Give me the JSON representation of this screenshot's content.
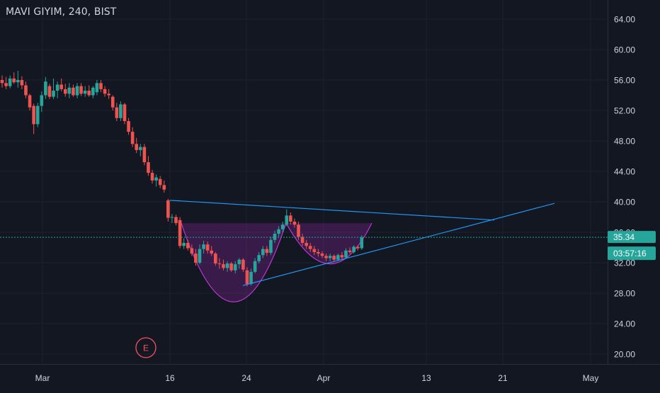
{
  "title": "MAVI GIYIM, 240, BIST",
  "colors": {
    "background": "#131722",
    "up": "#26a69a",
    "down": "#ef5350",
    "trendline": "#2196f3",
    "pattern_fill": "#9c27b0",
    "pattern_line": "#e040fb",
    "earnings": "#f7525f",
    "price_line": "#26a69a"
  },
  "price_tag": {
    "value": "35.34",
    "countdown": "03:57:16"
  },
  "earnings_marker": {
    "label": "E",
    "x_label": "between Mar and 16"
  },
  "chart_data": {
    "type": "candlestick",
    "y_axis": {
      "min": 19.0,
      "max": 66.0,
      "ticks": [
        "64.00",
        "60.00",
        "56.00",
        "52.00",
        "48.00",
        "44.00",
        "40.00",
        "36.00",
        "32.00",
        "28.00",
        "24.00",
        "20.00"
      ]
    },
    "x_axis": {
      "tick_labels": [
        "Mar",
        "16",
        "24",
        "Apr",
        "13",
        "21",
        "May"
      ]
    },
    "candles": [
      [
        56.0,
        56.6,
        55.0,
        55.6
      ],
      [
        55.6,
        56.4,
        54.8,
        55.2
      ],
      [
        55.2,
        56.6,
        54.9,
        56.2
      ],
      [
        56.2,
        57.0,
        55.5,
        55.7
      ],
      [
        55.7,
        57.2,
        55.0,
        56.0
      ],
      [
        56.0,
        56.5,
        54.8,
        55.3
      ],
      [
        55.3,
        55.8,
        53.6,
        54.0
      ],
      [
        54.0,
        54.2,
        52.0,
        52.4
      ],
      [
        52.6,
        52.9,
        48.9,
        50.2
      ],
      [
        50.2,
        53.0,
        49.8,
        52.6
      ],
      [
        52.6,
        54.5,
        51.8,
        54.0
      ],
      [
        54.0,
        56.4,
        53.5,
        55.8
      ],
      [
        55.2,
        55.5,
        53.5,
        53.8
      ],
      [
        53.8,
        56.2,
        53.5,
        54.6
      ],
      [
        54.6,
        55.8,
        53.6,
        55.4
      ],
      [
        55.4,
        56.2,
        54.5,
        54.8
      ],
      [
        54.8,
        55.5,
        53.8,
        54.2
      ],
      [
        54.2,
        55.6,
        53.6,
        55.0
      ],
      [
        55.0,
        55.4,
        53.8,
        54.0
      ],
      [
        54.0,
        55.6,
        53.6,
        55.2
      ],
      [
        55.2,
        55.6,
        53.9,
        54.2
      ],
      [
        54.2,
        55.2,
        53.8,
        54.6
      ],
      [
        54.6,
        55.3,
        53.8,
        54.0
      ],
      [
        54.0,
        55.2,
        53.6,
        55.0
      ],
      [
        54.4,
        56.0,
        54.0,
        55.6
      ],
      [
        55.6,
        56.0,
        54.4,
        54.8
      ],
      [
        54.8,
        55.2,
        53.8,
        54.2
      ],
      [
        54.2,
        54.8,
        53.5,
        54.0
      ],
      [
        53.8,
        54.0,
        52.0,
        52.4
      ],
      [
        52.4,
        53.0,
        50.6,
        51.0
      ],
      [
        51.0,
        53.2,
        50.6,
        52.8
      ],
      [
        52.8,
        53.0,
        50.2,
        50.6
      ],
      [
        50.6,
        51.0,
        48.8,
        49.2
      ],
      [
        49.2,
        49.8,
        47.2,
        47.6
      ],
      [
        47.6,
        48.4,
        46.4,
        46.8
      ],
      [
        46.8,
        47.6,
        46.0,
        47.2
      ],
      [
        47.2,
        47.6,
        44.8,
        45.2
      ],
      [
        45.2,
        46.0,
        43.4,
        43.8
      ],
      [
        43.8,
        44.2,
        42.4,
        42.8
      ],
      [
        42.8,
        43.6,
        42.0,
        43.2
      ],
      [
        43.0,
        43.4,
        41.8,
        42.2
      ],
      [
        42.2,
        42.8,
        41.2,
        41.6
      ],
      [
        40.2,
        40.4,
        37.4,
        37.9
      ],
      [
        37.9,
        38.4,
        37.2,
        38.0
      ],
      [
        38.0,
        38.3,
        36.9,
        37.2
      ],
      [
        37.6,
        38.0,
        33.9,
        34.2
      ],
      [
        34.2,
        35.2,
        33.8,
        34.6
      ],
      [
        34.6,
        35.0,
        33.6,
        33.9
      ],
      [
        33.9,
        34.4,
        32.9,
        33.2
      ],
      [
        33.2,
        33.8,
        31.6,
        32.0
      ],
      [
        32.0,
        34.4,
        31.8,
        33.8
      ],
      [
        33.8,
        34.9,
        33.2,
        34.4
      ],
      [
        34.4,
        34.8,
        33.2,
        33.6
      ],
      [
        33.6,
        34.2,
        32.9,
        33.2
      ],
      [
        33.2,
        33.4,
        31.6,
        31.9
      ],
      [
        31.9,
        32.6,
        31.2,
        31.8
      ],
      [
        31.8,
        32.4,
        31.0,
        31.3
      ],
      [
        31.3,
        32.2,
        30.8,
        31.9
      ],
      [
        31.9,
        32.1,
        30.8,
        31.0
      ],
      [
        31.0,
        32.2,
        30.6,
        31.8
      ],
      [
        31.8,
        32.6,
        31.2,
        32.4
      ],
      [
        32.4,
        32.6,
        30.8,
        31.1
      ],
      [
        31.0,
        31.4,
        28.9,
        29.2
      ],
      [
        29.2,
        31.2,
        29.0,
        30.8
      ],
      [
        30.8,
        32.6,
        30.6,
        32.2
      ],
      [
        32.2,
        33.4,
        31.9,
        33.0
      ],
      [
        33.0,
        34.2,
        32.6,
        33.8
      ],
      [
        33.8,
        34.2,
        32.9,
        33.3
      ],
      [
        33.3,
        35.4,
        33.0,
        35.0
      ],
      [
        35.0,
        36.2,
        34.6,
        35.8
      ],
      [
        35.8,
        36.8,
        35.4,
        36.4
      ],
      [
        36.4,
        37.4,
        36.0,
        37.0
      ],
      [
        37.0,
        39.0,
        36.8,
        38.2
      ],
      [
        38.2,
        38.6,
        37.0,
        37.4
      ],
      [
        37.4,
        37.8,
        36.6,
        37.0
      ],
      [
        37.0,
        37.4,
        35.0,
        35.4
      ],
      [
        35.4,
        35.8,
        34.2,
        34.6
      ],
      [
        34.6,
        35.0,
        33.8,
        34.2
      ],
      [
        34.2,
        34.6,
        33.4,
        33.8
      ],
      [
        33.8,
        34.2,
        33.0,
        33.4
      ],
      [
        33.4,
        33.8,
        32.8,
        33.2
      ],
      [
        33.2,
        33.5,
        32.6,
        32.9
      ],
      [
        32.9,
        33.2,
        32.2,
        32.6
      ],
      [
        32.6,
        33.2,
        32.2,
        32.9
      ],
      [
        32.9,
        33.1,
        32.2,
        32.4
      ],
      [
        32.4,
        33.2,
        32.2,
        33.0
      ],
      [
        33.0,
        33.4,
        32.4,
        32.7
      ],
      [
        32.7,
        33.9,
        32.5,
        33.6
      ],
      [
        33.6,
        34.0,
        33.2,
        33.4
      ],
      [
        33.4,
        34.3,
        33.2,
        34.1
      ],
      [
        34.1,
        34.3,
        33.6,
        33.9
      ],
      [
        33.9,
        35.6,
        33.7,
        35.3
      ]
    ]
  }
}
